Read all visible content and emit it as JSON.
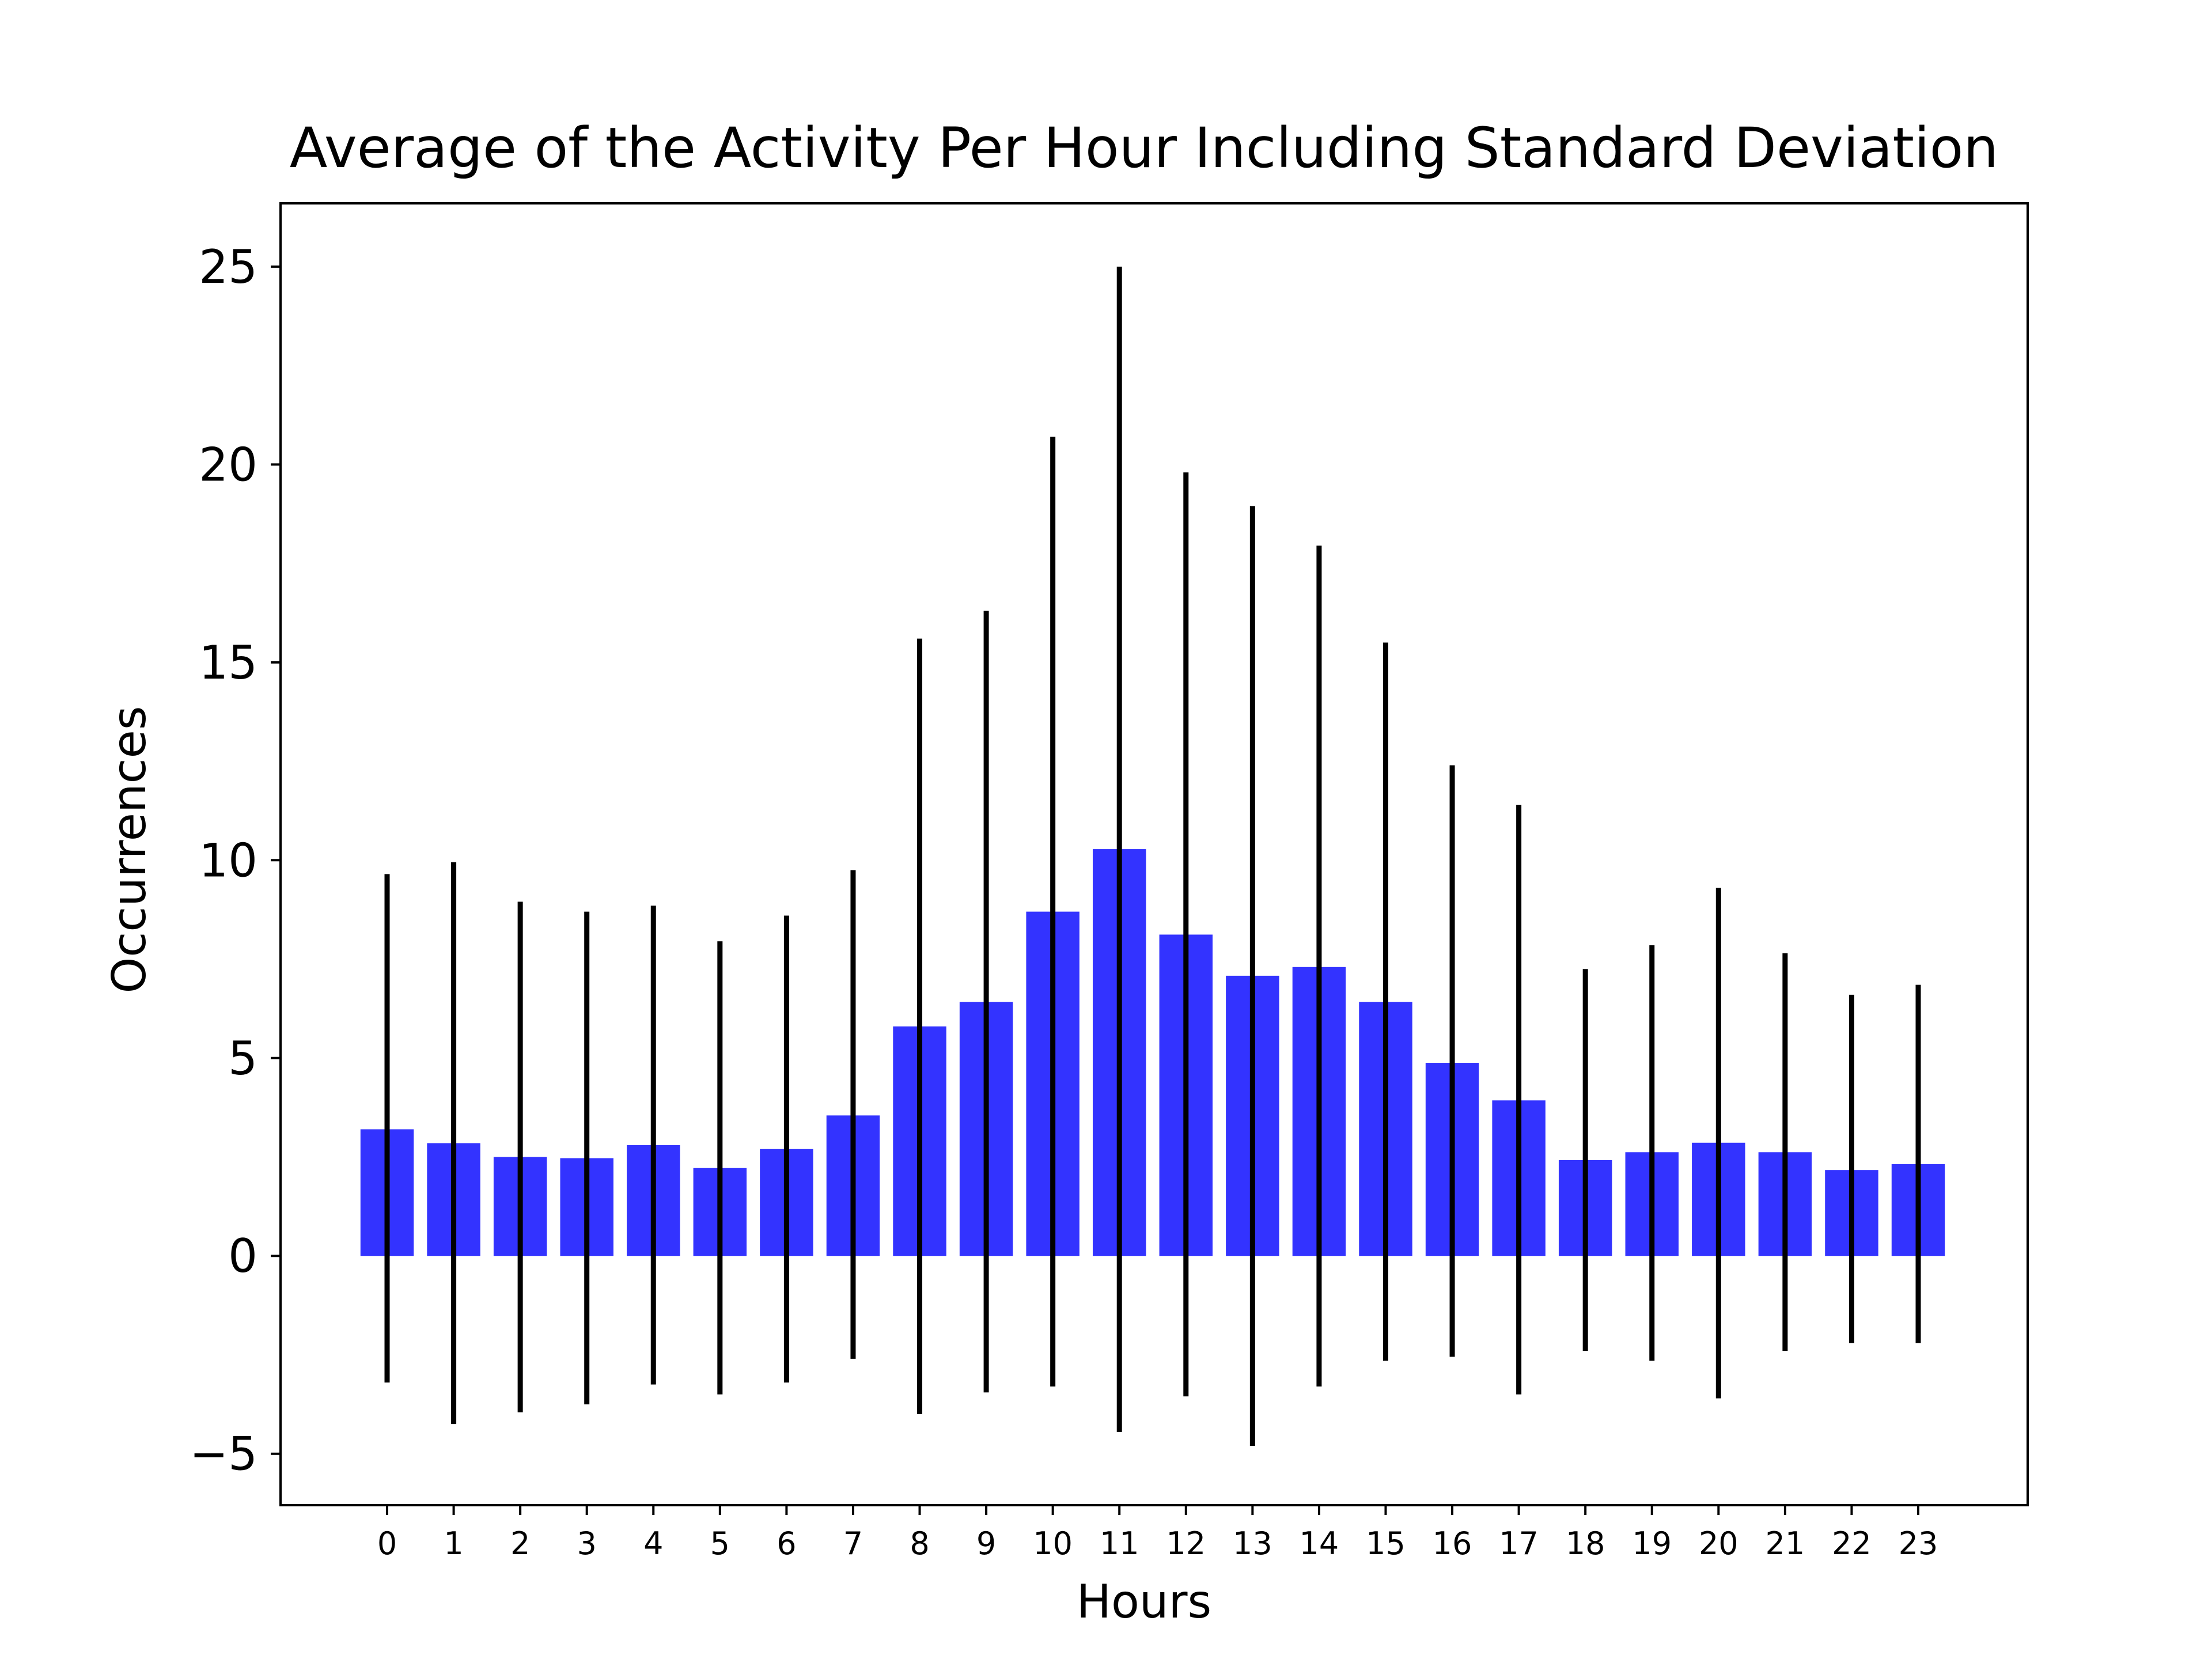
{
  "chart_data": {
    "type": "bar",
    "title": "Average of the Activity Per Hour Including Standard Deviation",
    "xlabel": "Hours",
    "ylabel": "Occurrences",
    "categories": [
      "0",
      "1",
      "2",
      "3",
      "4",
      "5",
      "6",
      "7",
      "8",
      "9",
      "10",
      "11",
      "12",
      "13",
      "14",
      "15",
      "16",
      "17",
      "18",
      "19",
      "20",
      "21",
      "22",
      "23"
    ],
    "values": [
      3.2,
      2.85,
      2.5,
      2.47,
      2.8,
      2.22,
      2.7,
      3.55,
      5.8,
      6.42,
      8.7,
      10.28,
      8.12,
      7.08,
      7.3,
      6.42,
      4.88,
      3.93,
      2.42,
      2.62,
      2.86,
      2.62,
      2.17,
      2.32
    ],
    "error_low": [
      -3.2,
      -4.25,
      -3.95,
      -3.75,
      -3.25,
      -3.5,
      -3.2,
      -2.6,
      -4.0,
      -3.45,
      -3.3,
      -4.45,
      -3.55,
      -4.8,
      -3.3,
      -2.65,
      -2.55,
      -3.5,
      -2.4,
      -2.65,
      -3.6,
      -2.4,
      -2.2,
      -2.2
    ],
    "error_high": [
      9.65,
      9.95,
      8.95,
      8.7,
      8.85,
      7.95,
      8.6,
      9.75,
      15.6,
      16.3,
      20.7,
      25.0,
      19.8,
      18.95,
      17.95,
      15.5,
      12.4,
      11.4,
      7.25,
      7.85,
      9.3,
      7.65,
      6.6,
      6.85
    ],
    "ylim": [
      -6.3,
      26.6
    ],
    "yticks": [
      -5,
      0,
      5,
      10,
      15,
      20,
      25
    ],
    "ytick_labels": [
      "−5",
      "0",
      "5",
      "10",
      "15",
      "20",
      "25"
    ],
    "grid": false,
    "colors": {
      "bar": "#3333ff",
      "errorbar": "#000000",
      "frame": "#000000"
    }
  }
}
